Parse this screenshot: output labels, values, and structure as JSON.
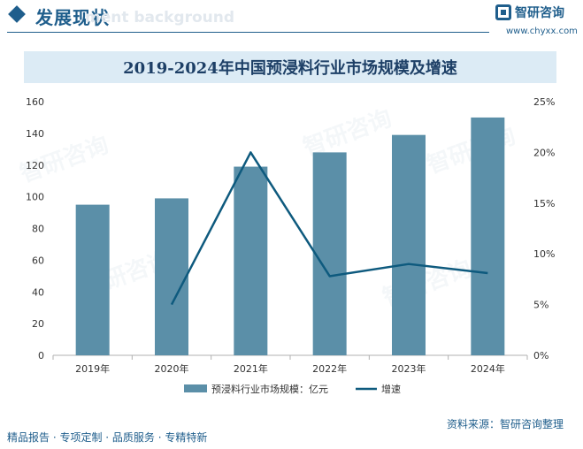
{
  "header": {
    "section_title": "发展现状",
    "ghost_text": "ment background",
    "brand_name": "智研咨询",
    "brand_url": "www.chyxx.com"
  },
  "footer": {
    "slogan": "精品报告 · 专项定制 · 品质服务 · 专精特新",
    "source": "资料来源：智研咨询整理"
  },
  "watermark_text": "智研咨询",
  "chart_data": {
    "type": "bar",
    "title": "2019-2024年中国预浸料行业市场规模及增速",
    "categories": [
      "2019年",
      "2020年",
      "2021年",
      "2022年",
      "2023年",
      "2024年"
    ],
    "series": [
      {
        "name": "预浸料行业市场规模：亿元",
        "type": "bar",
        "axis": "left",
        "values": [
          95,
          99,
          119,
          128,
          139,
          150
        ],
        "color": "#5b8fa8"
      },
      {
        "name": "增速",
        "type": "line",
        "axis": "right",
        "values": [
          null,
          5.0,
          20.0,
          7.8,
          9.0,
          8.1
        ],
        "color": "#0e5a7e"
      }
    ],
    "y_left": {
      "min": 0,
      "max": 160,
      "ticks": [
        "0",
        "20",
        "40",
        "60",
        "80",
        "100",
        "120",
        "140",
        "160"
      ]
    },
    "y_right": {
      "min": 0,
      "max": 25,
      "ticks": [
        "0%",
        "5%",
        "10%",
        "15%",
        "20%",
        "25%"
      ]
    },
    "grid": false,
    "legend_position": "bottom"
  }
}
